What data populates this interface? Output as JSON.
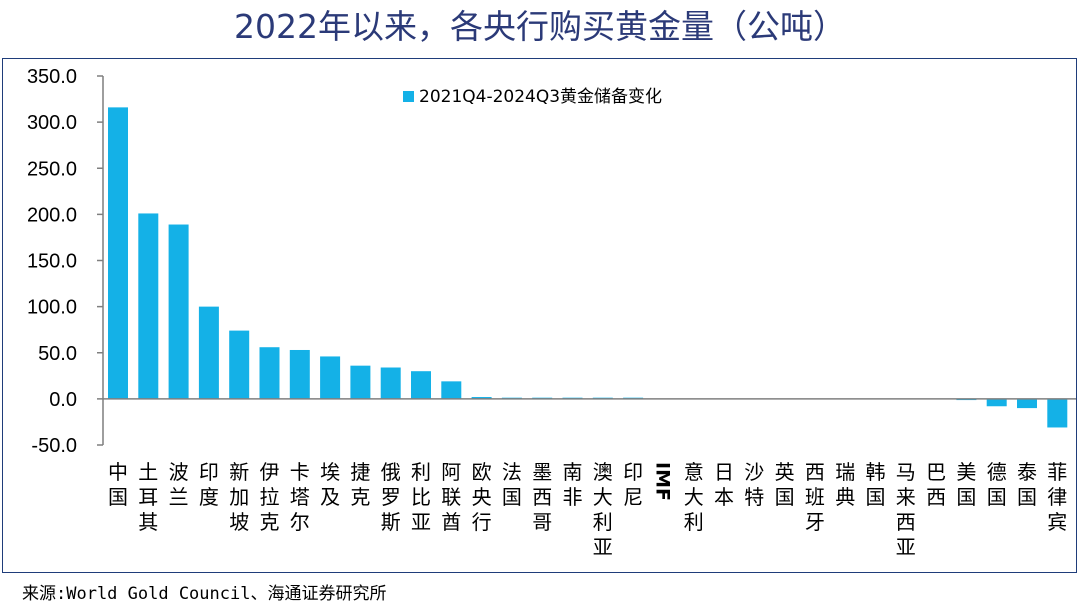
{
  "title": "2022年以来，各央行购买黄金量（公吨）",
  "source": "来源:World Gold Council、海通证券研究所",
  "colors": {
    "bar": "#14b1e7",
    "axis": "#7f7f7f",
    "title": "#2b3a78",
    "frame": "#1f3d7a"
  },
  "chart_data": {
    "type": "bar",
    "title": "2022年以来，各央行购买黄金量（公吨）",
    "xlabel": "",
    "ylabel": "",
    "ylim": [
      -50,
      350
    ],
    "yticks": [
      "-50.0",
      "0.0",
      "50.0",
      "100.0",
      "150.0",
      "200.0",
      "250.0",
      "300.0",
      "350.0"
    ],
    "grid": false,
    "legend_position": "top-center",
    "categories": [
      "中国",
      "土耳其",
      "波兰",
      "印度",
      "新加坡",
      "伊拉克",
      "卡塔尔",
      "埃及",
      "捷克",
      "俄罗斯",
      "利比亚",
      "阿联酋",
      "欧央行",
      "法国",
      "墨西哥",
      "南非",
      "澳大利亚",
      "印尼",
      "IMF",
      "意大利",
      "日本",
      "沙特",
      "英国",
      "西班牙",
      "瑞典",
      "韩国",
      "马来西亚",
      "巴西",
      "美国",
      "德国",
      "泰国",
      "菲律宾"
    ],
    "series": [
      {
        "name": "2021Q4-2024Q3黄金储备变化",
        "values": [
          316,
          201,
          189,
          100,
          74,
          56,
          53,
          46,
          36,
          34,
          30,
          19,
          2,
          1,
          1,
          1,
          1,
          1,
          0,
          0,
          0,
          0,
          0,
          0,
          0,
          0,
          0,
          0,
          -1,
          -8,
          -10,
          -31
        ]
      }
    ]
  }
}
